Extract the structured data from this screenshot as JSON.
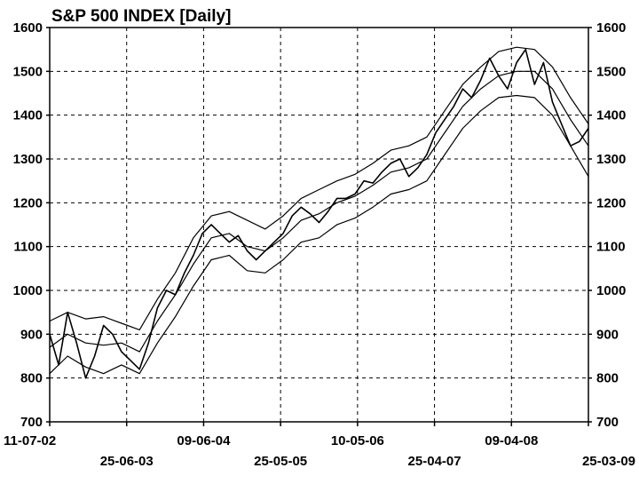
{
  "chart_data": {
    "type": "line",
    "title": "S&P 500 INDEX  [Daily]",
    "xlabel": "",
    "ylabel": "",
    "ylim": [
      700,
      1600
    ],
    "y_ticks": [
      700,
      800,
      900,
      1000,
      1100,
      1200,
      1300,
      1400,
      1500,
      1600
    ],
    "x_ticks_top_row": [
      "11-07-02",
      "09-06-04",
      "10-05-06",
      "09-04-08"
    ],
    "x_ticks_bottom_row": [
      "25-06-03",
      "25-05-05",
      "25-04-07",
      "25-03-09"
    ],
    "x_tick_order": [
      "11-07-02",
      "25-06-03",
      "09-06-04",
      "25-05-05",
      "10-05-06",
      "25-04-07",
      "09-04-08",
      "25-03-09"
    ],
    "grid": true,
    "legend": "none",
    "series": [
      {
        "values": [
          [
            0,
            900
          ],
          [
            2,
            830
          ],
          [
            4,
            950
          ],
          [
            6,
            880
          ],
          [
            8,
            800
          ],
          [
            10,
            850
          ],
          [
            12,
            920
          ],
          [
            14,
            900
          ],
          [
            16,
            860
          ],
          [
            18,
            840
          ],
          [
            20,
            820
          ],
          [
            22,
            880
          ],
          [
            24,
            960
          ],
          [
            26,
            1000
          ],
          [
            28,
            990
          ],
          [
            30,
            1040
          ],
          [
            32,
            1080
          ],
          [
            34,
            1130
          ],
          [
            36,
            1150
          ],
          [
            38,
            1130
          ],
          [
            40,
            1110
          ],
          [
            42,
            1125
          ],
          [
            44,
            1090
          ],
          [
            46,
            1070
          ],
          [
            48,
            1090
          ],
          [
            50,
            1110
          ],
          [
            52,
            1130
          ],
          [
            54,
            1170
          ],
          [
            56,
            1190
          ],
          [
            58,
            1175
          ],
          [
            60,
            1155
          ],
          [
            62,
            1180
          ],
          [
            64,
            1210
          ],
          [
            66,
            1210
          ],
          [
            68,
            1220
          ],
          [
            70,
            1250
          ],
          [
            72,
            1245
          ],
          [
            74,
            1270
          ],
          [
            76,
            1290
          ],
          [
            78,
            1300
          ],
          [
            80,
            1260
          ],
          [
            82,
            1280
          ],
          [
            84,
            1310
          ],
          [
            86,
            1360
          ],
          [
            88,
            1390
          ],
          [
            90,
            1420
          ],
          [
            92,
            1460
          ],
          [
            94,
            1440
          ],
          [
            96,
            1480
          ],
          [
            98,
            1530
          ],
          [
            100,
            1490
          ],
          [
            102,
            1460
          ],
          [
            104,
            1520
          ],
          [
            106,
            1550
          ],
          [
            108,
            1470
          ],
          [
            110,
            1520
          ],
          [
            112,
            1430
          ],
          [
            114,
            1380
          ],
          [
            116,
            1330
          ],
          [
            118,
            1340
          ],
          [
            120,
            1370
          ]
        ]
      },
      {
        "values": [
          [
            0,
            870
          ],
          [
            4,
            900
          ],
          [
            8,
            880
          ],
          [
            12,
            875
          ],
          [
            16,
            880
          ],
          [
            20,
            860
          ],
          [
            24,
            930
          ],
          [
            28,
            990
          ],
          [
            32,
            1060
          ],
          [
            36,
            1120
          ],
          [
            40,
            1130
          ],
          [
            44,
            1100
          ],
          [
            48,
            1090
          ],
          [
            52,
            1120
          ],
          [
            56,
            1160
          ],
          [
            60,
            1175
          ],
          [
            64,
            1200
          ],
          [
            68,
            1215
          ],
          [
            72,
            1240
          ],
          [
            76,
            1270
          ],
          [
            80,
            1280
          ],
          [
            84,
            1300
          ],
          [
            88,
            1360
          ],
          [
            92,
            1420
          ],
          [
            96,
            1460
          ],
          [
            100,
            1490
          ],
          [
            104,
            1500
          ],
          [
            108,
            1500
          ],
          [
            112,
            1460
          ],
          [
            116,
            1390
          ],
          [
            120,
            1330
          ]
        ]
      },
      {
        "values": [
          [
            0,
            930
          ],
          [
            4,
            950
          ],
          [
            8,
            935
          ],
          [
            12,
            940
          ],
          [
            16,
            925
          ],
          [
            20,
            910
          ],
          [
            24,
            980
          ],
          [
            28,
            1040
          ],
          [
            32,
            1120
          ],
          [
            36,
            1170
          ],
          [
            40,
            1180
          ],
          [
            44,
            1160
          ],
          [
            48,
            1140
          ],
          [
            52,
            1170
          ],
          [
            56,
            1210
          ],
          [
            60,
            1230
          ],
          [
            64,
            1250
          ],
          [
            68,
            1265
          ],
          [
            72,
            1290
          ],
          [
            76,
            1320
          ],
          [
            80,
            1330
          ],
          [
            84,
            1350
          ],
          [
            88,
            1410
          ],
          [
            92,
            1470
          ],
          [
            96,
            1510
          ],
          [
            100,
            1545
          ],
          [
            104,
            1555
          ],
          [
            108,
            1550
          ],
          [
            112,
            1510
          ],
          [
            116,
            1440
          ],
          [
            120,
            1380
          ]
        ]
      },
      {
        "values": [
          [
            0,
            810
          ],
          [
            4,
            850
          ],
          [
            8,
            825
          ],
          [
            12,
            810
          ],
          [
            16,
            830
          ],
          [
            20,
            810
          ],
          [
            24,
            880
          ],
          [
            28,
            940
          ],
          [
            32,
            1010
          ],
          [
            36,
            1070
          ],
          [
            40,
            1080
          ],
          [
            44,
            1045
          ],
          [
            48,
            1040
          ],
          [
            52,
            1070
          ],
          [
            56,
            1110
          ],
          [
            60,
            1120
          ],
          [
            64,
            1150
          ],
          [
            68,
            1165
          ],
          [
            72,
            1190
          ],
          [
            76,
            1220
          ],
          [
            80,
            1230
          ],
          [
            84,
            1250
          ],
          [
            88,
            1310
          ],
          [
            92,
            1370
          ],
          [
            96,
            1410
          ],
          [
            100,
            1440
          ],
          [
            104,
            1445
          ],
          [
            108,
            1440
          ],
          [
            112,
            1400
          ],
          [
            116,
            1330
          ],
          [
            120,
            1260
          ]
        ]
      }
    ]
  }
}
